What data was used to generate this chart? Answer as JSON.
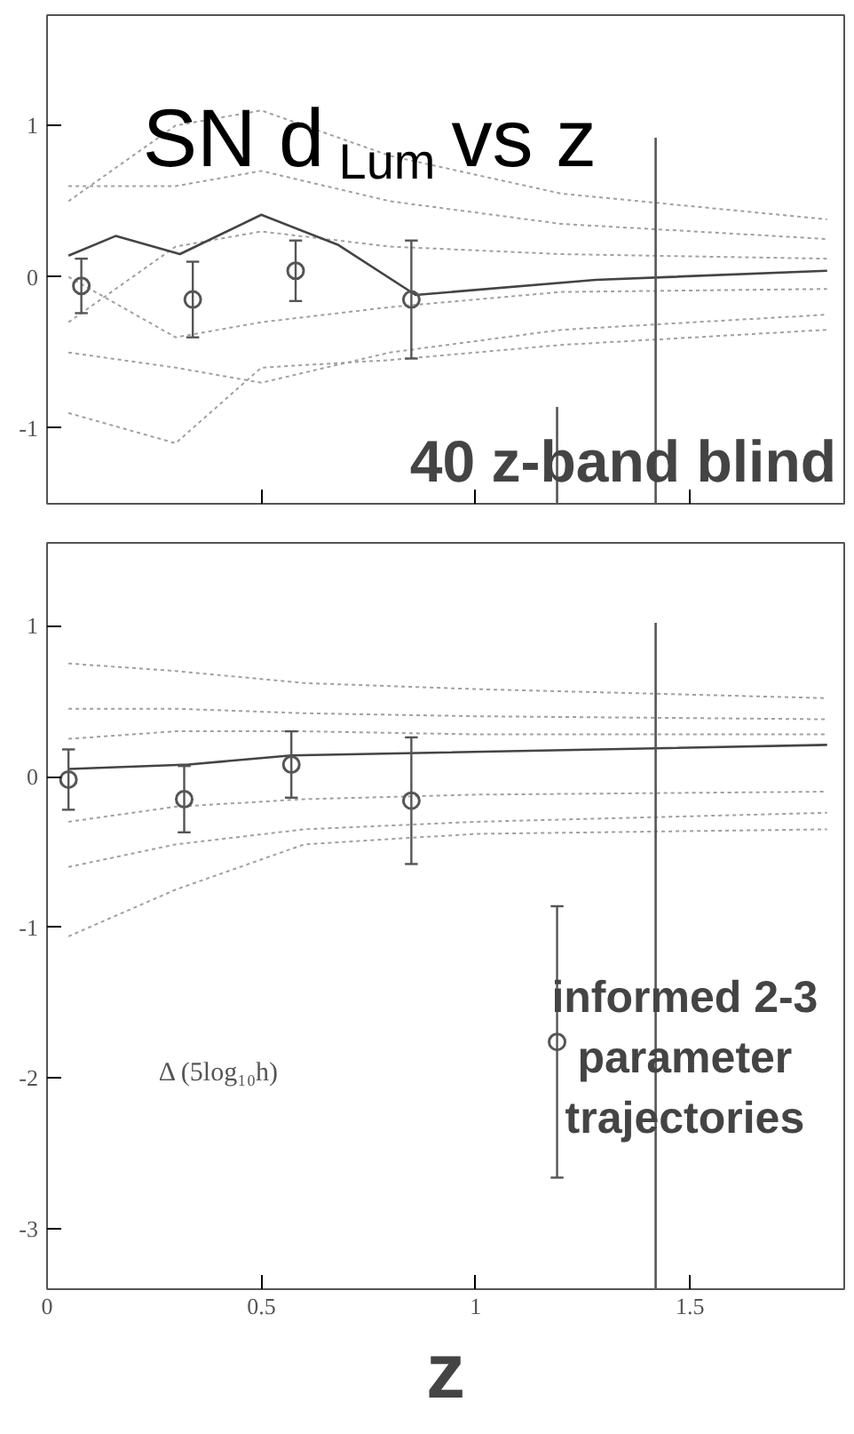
{
  "chart_data": [
    {
      "type": "line",
      "title": "SN d$_{Lum}$ vs z",
      "annotations": [
        "40 z-band blind"
      ],
      "xlim": [
        0,
        1.86
      ],
      "ylim": [
        -1.5,
        1.73
      ],
      "xticks": [
        0,
        0.5,
        1,
        1.5
      ],
      "yticks": [
        -1,
        0,
        1
      ],
      "tick_labels": "y",
      "grid": false,
      "series": [
        {
          "color": "#a0a0a0",
          "line_style": "dotted",
          "x": [
            0.05,
            0.3,
            0.5,
            0.8,
            1.2,
            1.82
          ],
          "values": [
            0.5,
            1.0,
            1.1,
            0.8,
            0.55,
            0.38
          ]
        },
        {
          "color": "#a0a0a0",
          "line_style": "dotted",
          "x": [
            0.05,
            0.3,
            0.5,
            0.8,
            1.2,
            1.82
          ],
          "values": [
            0.6,
            0.6,
            0.7,
            0.5,
            0.35,
            0.25
          ]
        },
        {
          "color": "#a0a0a0",
          "line_style": "dotted",
          "x": [
            0.05,
            0.3,
            0.5,
            0.8,
            1.2,
            1.82
          ],
          "values": [
            -0.3,
            0.2,
            0.3,
            0.2,
            0.15,
            0.12
          ]
        },
        {
          "color": "#a0a0a0",
          "line_style": "dotted",
          "x": [
            0.05,
            0.3,
            0.5,
            0.8,
            1.2,
            1.82
          ],
          "values": [
            0.0,
            -0.4,
            -0.3,
            -0.2,
            -0.1,
            -0.08
          ]
        },
        {
          "color": "#a0a0a0",
          "line_style": "dotted",
          "x": [
            0.05,
            0.3,
            0.5,
            0.8,
            1.2,
            1.82
          ],
          "values": [
            -0.5,
            -0.6,
            -0.7,
            -0.5,
            -0.35,
            -0.25
          ]
        },
        {
          "color": "#a0a0a0",
          "line_style": "dotted",
          "x": [
            0.05,
            0.3,
            0.5,
            0.8,
            1.2,
            1.82
          ],
          "values": [
            -0.9,
            -1.1,
            -0.6,
            -0.55,
            -0.45,
            -0.35
          ]
        },
        {
          "color": "#444444",
          "line_style": "solid",
          "x": [
            0.05,
            0.16,
            0.31,
            0.5,
            0.68,
            0.86,
            1.28,
            1.82
          ],
          "values": [
            0.14,
            0.27,
            0.15,
            0.41,
            0.21,
            -0.12,
            -0.02,
            0.04
          ]
        },
        {
          "type": "scatter",
          "marker": "circle",
          "color": "#555555",
          "x": [
            0.08,
            0.34,
            0.58,
            0.85
          ],
          "values": [
            -0.06,
            -0.15,
            0.04,
            -0.15
          ],
          "errors": [
            0.18,
            0.25,
            0.2,
            0.39
          ]
        },
        {
          "color": "#555555",
          "line_style": "solid",
          "x": [
            1.19,
            1.19
          ],
          "values": [
            -1.5,
            -0.86
          ]
        },
        {
          "color": "#555555",
          "line_style": "solid",
          "x": [
            1.42,
            1.42
          ],
          "values": [
            -1.5,
            0.92
          ]
        }
      ]
    },
    {
      "type": "line",
      "xlabel": "z",
      "annotations": [
        "informed 2-3\nparameter\ntrajectories",
        "Δ (5log₁₀h)"
      ],
      "xlim": [
        0,
        1.86
      ],
      "ylim": [
        -3.4,
        1.55
      ],
      "xticks": [
        0,
        0.5,
        1,
        1.5
      ],
      "yticks": [
        -3,
        -2,
        -1,
        0,
        1
      ],
      "grid": false,
      "series": [
        {
          "color": "#a0a0a0",
          "line_style": "dotted",
          "x": [
            0.05,
            0.3,
            0.6,
            1.0,
            1.82
          ],
          "values": [
            0.75,
            0.7,
            0.62,
            0.58,
            0.52
          ]
        },
        {
          "color": "#a0a0a0",
          "line_style": "dotted",
          "x": [
            0.05,
            0.3,
            0.6,
            1.0,
            1.82
          ],
          "values": [
            0.45,
            0.45,
            0.42,
            0.4,
            0.38
          ]
        },
        {
          "color": "#a0a0a0",
          "line_style": "dotted",
          "x": [
            0.05,
            0.3,
            0.6,
            1.0,
            1.82
          ],
          "values": [
            0.25,
            0.3,
            0.3,
            0.28,
            0.28
          ]
        },
        {
          "color": "#a0a0a0",
          "line_style": "dotted",
          "x": [
            0.05,
            0.3,
            0.6,
            1.0,
            1.82
          ],
          "values": [
            -0.3,
            -0.2,
            -0.15,
            -0.12,
            -0.1
          ]
        },
        {
          "color": "#a0a0a0",
          "line_style": "dotted",
          "x": [
            0.05,
            0.3,
            0.6,
            1.0,
            1.82
          ],
          "values": [
            -0.6,
            -0.45,
            -0.35,
            -0.3,
            -0.24
          ]
        },
        {
          "color": "#a0a0a0",
          "line_style": "dotted",
          "x": [
            0.05,
            0.3,
            0.6,
            1.0,
            1.82
          ],
          "values": [
            -1.06,
            -0.75,
            -0.45,
            -0.38,
            -0.35
          ]
        },
        {
          "color": "#444444",
          "line_style": "solid",
          "x": [
            0.05,
            0.33,
            0.57,
            1.82
          ],
          "values": [
            0.05,
            0.08,
            0.14,
            0.21
          ]
        },
        {
          "type": "scatter",
          "marker": "circle",
          "color": "#555555",
          "x": [
            0.05,
            0.32,
            0.57,
            0.85,
            1.19
          ],
          "values": [
            -0.02,
            -0.15,
            0.08,
            -0.16,
            -1.76
          ],
          "errors": [
            0.2,
            0.22,
            0.22,
            0.42,
            0.9
          ]
        },
        {
          "color": "#555555",
          "line_style": "solid",
          "x": [
            1.42,
            1.42
          ],
          "values": [
            -3.4,
            1.02
          ]
        }
      ]
    }
  ]
}
